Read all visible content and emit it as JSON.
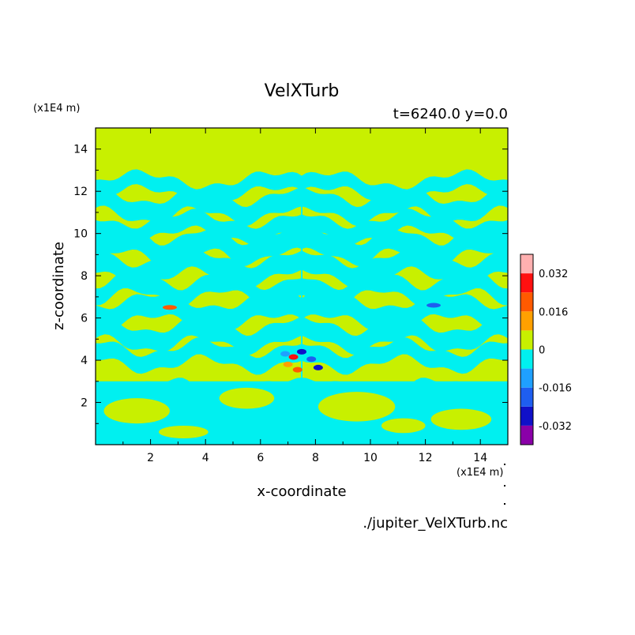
{
  "chart_data": {
    "type": "heatmap",
    "title": "VelXTurb",
    "subtitle": "t=6240.0 y=0.0",
    "xlabel": "x-coordinate",
    "ylabel": "z-coordinate",
    "x_unit": "(x1E4 m)",
    "y_unit": "(x1E4 m)",
    "source_file": "./jupiter_VelXTurb.nc",
    "xlim": [
      0,
      15
    ],
    "ylim": [
      0,
      15
    ],
    "x_ticks": [
      2,
      4,
      6,
      8,
      10,
      12,
      14
    ],
    "y_ticks": [
      2,
      4,
      6,
      8,
      10,
      12,
      14
    ],
    "colorbar": {
      "levels": [
        -0.04,
        -0.032,
        -0.024,
        -0.016,
        -0.008,
        0,
        0.008,
        0.016,
        0.024,
        0.032,
        0.04
      ],
      "colors": [
        "#8a00a8",
        "#1010c8",
        "#1e5ef0",
        "#1fa0ff",
        "#00f0f0",
        "#c8f000",
        "#ffa000",
        "#ff5a00",
        "#ff1010",
        "#ffb0b0"
      ],
      "tick_labels": [
        "0.032",
        "0.016",
        "0",
        "-0.016",
        "-0.032"
      ],
      "tick_values": [
        0.032,
        0.016,
        0,
        -0.016,
        -0.032
      ]
    },
    "background_color": "#c8f000",
    "dominant_negative_color": "#00f0f0"
  }
}
